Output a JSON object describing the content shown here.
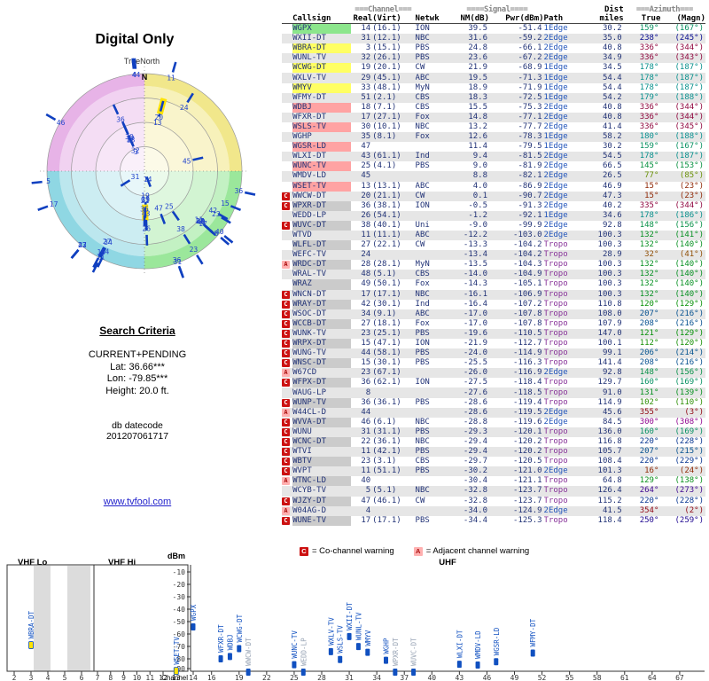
{
  "left_panel": {
    "title": "Digital Only",
    "true_north": "TrueNorth",
    "search_title": "Search Criteria",
    "search_mode": "CURRENT+PENDING",
    "lat": "Lat: 36.66***",
    "lon": "Lon: -79.85***",
    "height": "Height: 20.0 ft.",
    "datecode_label": "db datecode",
    "datecode": "201207061717",
    "link": "www.tvfool.com"
  },
  "polar": {
    "north_label": "N",
    "highlighted": [
      "WWCW-DT",
      "WFMY-DT"
    ],
    "quadrant_colors": {
      "ne": "#eee16e",
      "se": "#82e182",
      "sw": "#73cddc",
      "nw": "#e1a0e1"
    }
  },
  "table": {
    "header": {
      "channel_deco": "===Channel===",
      "signal_deco": "====Signal====",
      "dist": "Dist",
      "azimuth_deco": "===Azimuth===",
      "callsign": "Callsign",
      "real": "Real",
      "virt": "(Virt)",
      "netwk": "Netwk",
      "nm": "NM(dB)",
      "pwr": "Pwr(dBm)",
      "path": "Path",
      "miles": "miles",
      "true": "True",
      "magn": "(Magn)"
    },
    "rows": [
      {
        "w": "",
        "cs": "WGPX",
        "re": "14",
        "vi": "(16.1)",
        "nw": "ION",
        "nm": "39.5",
        "pw": "-51.4",
        "pa": "1Edge",
        "mi": "30.2",
        "az": 159,
        "mg": 167,
        "st": "green"
      },
      {
        "w": "",
        "cs": "WXII-DT",
        "re": "31",
        "vi": "(12.1)",
        "nw": "NBC",
        "nm": "31.6",
        "pw": "-59.2",
        "pa": "2Edge",
        "mi": "35.0",
        "az": 238,
        "mg": 245,
        "st": "green"
      },
      {
        "w": "",
        "cs": "WBRA-DT",
        "re": "3",
        "vi": "(15.1)",
        "nw": "PBS",
        "nm": "24.8",
        "pw": "-66.1",
        "pa": "2Edge",
        "mi": "40.8",
        "az": 336,
        "mg": 344,
        "st": "yellow"
      },
      {
        "w": "",
        "cs": "WUNL-TV",
        "re": "32",
        "vi": "(26.1)",
        "nw": "PBS",
        "nm": "23.6",
        "pw": "-67.2",
        "pa": "2Edge",
        "mi": "34.9",
        "az": 336,
        "mg": 343,
        "st": "yellow"
      },
      {
        "w": "",
        "cs": "WCWG-DT",
        "re": "19",
        "vi": "(20.1)",
        "nw": "CW",
        "nm": "21.9",
        "pw": "-68.9",
        "pa": "1Edge",
        "mi": "34.5",
        "az": 178,
        "mg": 187,
        "st": "yellow"
      },
      {
        "w": "",
        "cs": "WXLV-TV",
        "re": "29",
        "vi": "(45.1)",
        "nw": "ABC",
        "nm": "19.5",
        "pw": "-71.3",
        "pa": "1Edge",
        "mi": "54.4",
        "az": 178,
        "mg": 187,
        "st": "yellow"
      },
      {
        "w": "",
        "cs": "WMYV",
        "re": "33",
        "vi": "(48.1)",
        "nw": "MyN",
        "nm": "18.9",
        "pw": "-71.9",
        "pa": "1Edge",
        "mi": "54.4",
        "az": 178,
        "mg": 187,
        "st": "yellow"
      },
      {
        "w": "",
        "cs": "WFMY-DT",
        "re": "51",
        "vi": "(2.1)",
        "nw": "CBS",
        "nm": "18.3",
        "pw": "-72.5",
        "pa": "1Edge",
        "mi": "54.2",
        "az": 179,
        "mg": 188,
        "st": "yellow"
      },
      {
        "w": "",
        "cs": "WDBJ",
        "re": "18",
        "vi": "(7.1)",
        "nw": "CBS",
        "nm": "15.5",
        "pw": "-75.3",
        "pa": "2Edge",
        "mi": "40.8",
        "az": 336,
        "mg": 344,
        "st": "pink"
      },
      {
        "w": "",
        "cs": "WFXR-DT",
        "re": "17",
        "vi": "(27.1)",
        "nw": "Fox",
        "nm": "14.8",
        "pw": "-77.1",
        "pa": "2Edge",
        "mi": "40.8",
        "az": 336,
        "mg": 344,
        "st": "pink"
      },
      {
        "w": "",
        "cs": "WSLS-TV",
        "re": "30",
        "vi": "(10.1)",
        "nw": "NBC",
        "nm": "13.2",
        "pw": "-77.7",
        "pa": "2Edge",
        "mi": "41.4",
        "az": 336,
        "mg": 345,
        "st": "pink"
      },
      {
        "w": "",
        "cs": "WGHP",
        "re": "35",
        "vi": "(8.1)",
        "nw": "Fox",
        "nm": "12.6",
        "pw": "-78.3",
        "pa": "1Edge",
        "mi": "58.2",
        "az": 180,
        "mg": 188,
        "st": "pink"
      },
      {
        "w": "",
        "cs": "WGSR-LD",
        "re": "47",
        "vi": "",
        "nw": "",
        "nm": "11.4",
        "pw": "-79.5",
        "pa": "1Edge",
        "mi": "30.2",
        "az": 159,
        "mg": 167,
        "st": "pink"
      },
      {
        "w": "",
        "cs": "WLXI-DT",
        "re": "43",
        "vi": "(61.1)",
        "nw": "Ind",
        "nm": "9.4",
        "pw": "-81.5",
        "pa": "2Edge",
        "mi": "54.5",
        "az": 178,
        "mg": 187,
        "st": "pink"
      },
      {
        "w": "",
        "cs": "WUNC-TV",
        "re": "25",
        "vi": "(4.1)",
        "nw": "PBS",
        "nm": "9.0",
        "pw": "-81.9",
        "pa": "2Edge",
        "mi": "66.5",
        "az": 145,
        "mg": 153,
        "st": "pink"
      },
      {
        "w": "",
        "cs": "WMDV-LD",
        "re": "45",
        "vi": "",
        "nw": "",
        "nm": "8.8",
        "pw": "-82.1",
        "pa": "2Edge",
        "mi": "26.5",
        "az": 77,
        "mg": 85,
        "st": "pink"
      },
      {
        "w": "",
        "cs": "WSET-TV",
        "re": "13",
        "vi": "(13.1)",
        "nw": "ABC",
        "nm": "4.0",
        "pw": "-86.9",
        "pa": "2Edge",
        "mi": "46.9",
        "az": 15,
        "mg": 23,
        "st": "pink"
      },
      {
        "w": "C",
        "cs": "WWCW-DT",
        "re": "20",
        "vi": "(21.1)",
        "nw": "CW",
        "nm": "0.1",
        "pw": "-90.7",
        "pa": "2Edge",
        "mi": "47.3",
        "az": 15,
        "mg": 23,
        "st": "pink"
      },
      {
        "w": "C",
        "cs": "WPXR-DT",
        "re": "36",
        "vi": "(38.1)",
        "nw": "ION",
        "nm": "-0.5",
        "pw": "-91.3",
        "pa": "2Edge",
        "mi": "40.2",
        "az": 335,
        "mg": 344,
        "st": "gray"
      },
      {
        "w": "",
        "cs": "WEDD-LP",
        "re": "26",
        "vi": "(54.1)",
        "nw": "",
        "nm": "-1.2",
        "pw": "-92.1",
        "pa": "1Edge",
        "mi": "34.6",
        "az": 178,
        "mg": 186,
        "st": "gray"
      },
      {
        "w": "C",
        "cs": "WUVC-DT",
        "re": "38",
        "vi": "(40.1)",
        "nw": "Uni",
        "nm": "-9.0",
        "pw": "-99.9",
        "pa": "2Edge",
        "mi": "92.8",
        "az": 148,
        "mg": 156,
        "st": "gray"
      },
      {
        "w": "",
        "cs": "WTVD",
        "re": "11",
        "vi": "(11.1)",
        "nw": "ABC",
        "nm": "-12.2",
        "pw": "-103.0",
        "pa": "2Edge",
        "mi": "100.3",
        "az": 132,
        "mg": 141,
        "st": "gray"
      },
      {
        "w": "",
        "cs": "WLFL-DT",
        "re": "27",
        "vi": "(22.1)",
        "nw": "CW",
        "nm": "-13.3",
        "pw": "-104.2",
        "pa": "Tropo",
        "mi": "100.3",
        "az": 132,
        "mg": 140,
        "st": "gray"
      },
      {
        "w": "",
        "cs": "WEFC-TV",
        "re": "24",
        "vi": "",
        "nw": "",
        "nm": "-13.4",
        "pw": "-104.2",
        "pa": "Tropo",
        "mi": "28.9",
        "az": 32,
        "mg": 41,
        "st": "gray"
      },
      {
        "w": "A",
        "cs": "WRDC-DT",
        "re": "28",
        "vi": "(28.1)",
        "nw": "MyN",
        "nm": "-13.5",
        "pw": "-104.3",
        "pa": "Tropo",
        "mi": "100.3",
        "az": 132,
        "mg": 140,
        "st": "gray"
      },
      {
        "w": "",
        "cs": "WRAL-TV",
        "re": "48",
        "vi": "(5.1)",
        "nw": "CBS",
        "nm": "-14.0",
        "pw": "-104.9",
        "pa": "Tropo",
        "mi": "100.3",
        "az": 132,
        "mg": 140,
        "st": "gray"
      },
      {
        "w": "",
        "cs": "WRAZ",
        "re": "49",
        "vi": "(50.1)",
        "nw": "Fox",
        "nm": "-14.3",
        "pw": "-105.1",
        "pa": "Tropo",
        "mi": "100.3",
        "az": 132,
        "mg": 140,
        "st": "gray"
      },
      {
        "w": "C",
        "cs": "WNCN-DT",
        "re": "17",
        "vi": "(17.1)",
        "nw": "NBC",
        "nm": "-16.1",
        "pw": "-106.9",
        "pa": "Tropo",
        "mi": "100.3",
        "az": 132,
        "mg": 140,
        "st": "gray"
      },
      {
        "w": "C",
        "cs": "WRAY-DT",
        "re": "42",
        "vi": "(30.1)",
        "nw": "Ind",
        "nm": "-16.4",
        "pw": "-107.2",
        "pa": "Tropo",
        "mi": "110.8",
        "az": 120,
        "mg": 129,
        "st": "gray"
      },
      {
        "w": "C",
        "cs": "WSOC-DT",
        "re": "34",
        "vi": "(9.1)",
        "nw": "ABC",
        "nm": "-17.0",
        "pw": "-107.8",
        "pa": "Tropo",
        "mi": "108.0",
        "az": 207,
        "mg": 216,
        "st": "gray"
      },
      {
        "w": "C",
        "cs": "WCCB-DT",
        "re": "27",
        "vi": "(18.1)",
        "nw": "Fox",
        "nm": "-17.0",
        "pw": "-107.8",
        "pa": "Tropo",
        "mi": "107.9",
        "az": 208,
        "mg": 216,
        "st": "gray"
      },
      {
        "w": "C",
        "cs": "WUNK-TV",
        "re": "23",
        "vi": "(25.1)",
        "nw": "PBS",
        "nm": "-19.6",
        "pw": "-110.5",
        "pa": "Tropo",
        "mi": "147.0",
        "az": 121,
        "mg": 129,
        "st": "gray"
      },
      {
        "w": "C",
        "cs": "WRPX-DT",
        "re": "15",
        "vi": "(47.1)",
        "nw": "ION",
        "nm": "-21.9",
        "pw": "-112.7",
        "pa": "Tropo",
        "mi": "100.1",
        "az": 112,
        "mg": 120,
        "st": "gray"
      },
      {
        "w": "C",
        "cs": "WUNG-TV",
        "re": "44",
        "vi": "(58.1)",
        "nw": "PBS",
        "nm": "-24.0",
        "pw": "-114.9",
        "pa": "Tropo",
        "mi": "99.1",
        "az": 206,
        "mg": 214,
        "st": "gray"
      },
      {
        "w": "C",
        "cs": "WNSC-DT",
        "re": "15",
        "vi": "(30.1)",
        "nw": "PBS",
        "nm": "-25.5",
        "pw": "-116.3",
        "pa": "Tropo",
        "mi": "141.4",
        "az": 208,
        "mg": 216,
        "st": "gray"
      },
      {
        "w": "A",
        "cs": "W67CD",
        "re": "23",
        "vi": "(67.1)",
        "nw": "",
        "nm": "-26.0",
        "pw": "-116.9",
        "pa": "2Edge",
        "mi": "92.8",
        "az": 148,
        "mg": 156,
        "st": "gray"
      },
      {
        "w": "C",
        "cs": "WFPX-DT",
        "re": "36",
        "vi": "(62.1)",
        "nw": "ION",
        "nm": "-27.5",
        "pw": "-118.4",
        "pa": "Tropo",
        "mi": "129.7",
        "az": 160,
        "mg": 169,
        "st": "gray"
      },
      {
        "w": "",
        "cs": "WAUG-LP",
        "re": "8",
        "vi": "",
        "nw": "",
        "nm": "-27.6",
        "pw": "-118.5",
        "pa": "Tropo",
        "mi": "91.0",
        "az": 131,
        "mg": 139,
        "st": "gray"
      },
      {
        "w": "C",
        "cs": "WUNP-TV",
        "re": "36",
        "vi": "(36.1)",
        "nw": "PBS",
        "nm": "-28.6",
        "pw": "-119.4",
        "pa": "Tropo",
        "mi": "114.9",
        "az": 102,
        "mg": 110,
        "st": "gray"
      },
      {
        "w": "A",
        "cs": "W44CL-D",
        "re": "44",
        "vi": "",
        "nw": "",
        "nm": "-28.6",
        "pw": "-119.5",
        "pa": "2Edge",
        "mi": "45.6",
        "az": 355,
        "mg": 3,
        "st": "gray"
      },
      {
        "w": "C",
        "cs": "WVVA-DT",
        "re": "46",
        "vi": "(6.1)",
        "nw": "NBC",
        "nm": "-28.8",
        "pw": "-119.6",
        "pa": "2Edge",
        "mi": "84.5",
        "az": 300,
        "mg": 308,
        "st": "gray"
      },
      {
        "w": "C",
        "cs": "WUNU",
        "re": "31",
        "vi": "(31.1)",
        "nw": "PBS",
        "nm": "-29.3",
        "pw": "-120.1",
        "pa": "Tropo",
        "mi": "136.0",
        "az": 160,
        "mg": 169,
        "st": "gray"
      },
      {
        "w": "C",
        "cs": "WCNC-DT",
        "re": "22",
        "vi": "(36.1)",
        "nw": "NBC",
        "nm": "-29.4",
        "pw": "-120.2",
        "pa": "Tropo",
        "mi": "116.8",
        "az": 220,
        "mg": 228,
        "st": "gray"
      },
      {
        "w": "C",
        "cs": "WTVI",
        "re": "11",
        "vi": "(42.1)",
        "nw": "PBS",
        "nm": "-29.4",
        "pw": "-120.2",
        "pa": "Tropo",
        "mi": "105.7",
        "az": 207,
        "mg": 215,
        "st": "gray"
      },
      {
        "w": "C",
        "cs": "WBTV",
        "re": "23",
        "vi": "(3.1)",
        "nw": "CBS",
        "nm": "-29.7",
        "pw": "-120.5",
        "pa": "Tropo",
        "mi": "108.4",
        "az": 220,
        "mg": 229,
        "st": "gray"
      },
      {
        "w": "C",
        "cs": "WVPT",
        "re": "11",
        "vi": "(51.1)",
        "nw": "PBS",
        "nm": "-30.2",
        "pw": "-121.0",
        "pa": "2Edge",
        "mi": "101.3",
        "az": 16,
        "mg": 24,
        "st": "gray"
      },
      {
        "w": "A",
        "cs": "WTNC-LD",
        "re": "40",
        "vi": "",
        "nw": "",
        "nm": "-30.4",
        "pw": "-121.1",
        "pa": "Tropo",
        "mi": "64.8",
        "az": 129,
        "mg": 138,
        "st": "gray"
      },
      {
        "w": "",
        "cs": "WCYB-TV",
        "re": "5",
        "vi": "(5.1)",
        "nw": "NBC",
        "nm": "-32.8",
        "pw": "-123.7",
        "pa": "Tropo",
        "mi": "126.4",
        "az": 264,
        "mg": 273,
        "st": "gray"
      },
      {
        "w": "C",
        "cs": "WJZY-DT",
        "re": "47",
        "vi": "(46.1)",
        "nw": "CW",
        "nm": "-32.8",
        "pw": "-123.7",
        "pa": "Tropo",
        "mi": "115.2",
        "az": 220,
        "mg": 228,
        "st": "gray"
      },
      {
        "w": "A",
        "cs": "W04AG-D",
        "re": "4",
        "vi": "",
        "nw": "",
        "nm": "-34.0",
        "pw": "-124.9",
        "pa": "2Edge",
        "mi": "41.5",
        "az": 354,
        "mg": 2,
        "st": "gray"
      },
      {
        "w": "C",
        "cs": "WUNE-TV",
        "re": "17",
        "vi": "(17.1)",
        "nw": "PBS",
        "nm": "-34.4",
        "pw": "-125.3",
        "pa": "Tropo",
        "mi": "118.4",
        "az": 250,
        "mg": 259,
        "st": "gray"
      }
    ]
  },
  "legend": {
    "c_symbol": "C",
    "c_text": "= Co-channel warning",
    "a_symbol": "A",
    "a_text": "= Adjacent channel warning"
  },
  "bottom_chart": {
    "vhf_lo_label": "VHF Lo",
    "vhf_hi_label": "VHF Hi",
    "uhf_label": "UHF",
    "dbm_label": "dBm",
    "channel_label": "Channel",
    "dbm_ticks": [
      -10,
      -20,
      -30,
      -40,
      -50,
      -60,
      -70,
      -80,
      -90
    ],
    "vhf_lo_channels": [
      2,
      3,
      4,
      5,
      6
    ],
    "vhf_hi_channels": [
      7,
      8,
      9,
      10,
      11,
      12,
      13
    ],
    "uhf_channels": [
      14,
      16,
      19,
      22,
      25,
      28,
      31,
      34,
      37,
      40,
      43,
      46,
      49,
      52,
      55,
      58,
      61,
      64,
      67
    ],
    "highlighted": [
      "WBRA-DT",
      "WSET-TV"
    ]
  }
}
